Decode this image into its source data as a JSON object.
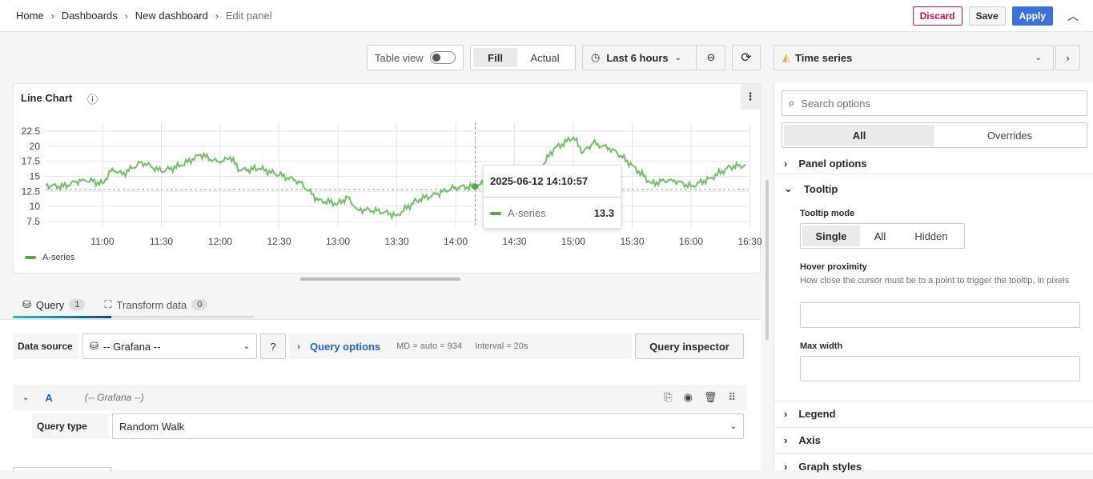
{
  "breadcrumb": [
    "Home",
    "Dashboards",
    "New dashboard",
    "Edit panel"
  ],
  "topbar": {
    "discard": "Discard",
    "save": "Save",
    "apply": "Apply"
  },
  "toolbar": {
    "table_view": "Table view",
    "table_view_on": false,
    "fill": "Fill",
    "actual": "Actual",
    "time_range": "Last 6 hours",
    "viz": "Time series"
  },
  "panel": {
    "title": "Line Chart",
    "tooltip": {
      "time": "2025-06-12 14:10:57",
      "series": "A-series",
      "value": "13.3"
    }
  },
  "chart_data": {
    "type": "line",
    "title": "Line Chart",
    "ylim": [
      5,
      25
    ],
    "yticks": [
      "22.5",
      "20",
      "17.5",
      "15",
      "12.5",
      "10",
      "7.5"
    ],
    "xticks": [
      "11:00",
      "11:30",
      "12:00",
      "12:30",
      "13:00",
      "13:30",
      "14:00",
      "14:30",
      "15:00",
      "15:30",
      "16:00",
      "16:30"
    ],
    "legend": "bottom-left",
    "grid": true,
    "series": [
      {
        "name": "A-series",
        "color": "#73bf69",
        "x": [
          "10:31",
          "10:40",
          "10:50",
          "11:00",
          "11:05",
          "11:10",
          "11:20",
          "11:30",
          "11:40",
          "11:50",
          "12:00",
          "12:05",
          "12:10",
          "12:20",
          "12:30",
          "12:40",
          "12:50",
          "13:00",
          "13:05",
          "13:10",
          "13:20",
          "13:30",
          "13:40",
          "13:50",
          "14:00",
          "14:10",
          "14:20",
          "14:30",
          "14:40",
          "14:50",
          "15:00",
          "15:05",
          "15:10",
          "15:20",
          "15:30",
          "15:40",
          "15:50",
          "16:00",
          "16:10",
          "16:20",
          "16:28"
        ],
        "y": [
          13.5,
          13.3,
          14.5,
          13.8,
          16.3,
          15.3,
          17.4,
          15.8,
          16.8,
          18.6,
          17.2,
          18.2,
          16.0,
          16.3,
          15.2,
          14.2,
          11.0,
          10.5,
          11.5,
          9.5,
          9.3,
          8.5,
          11.0,
          12.0,
          13.2,
          13.3,
          14.5,
          16.5,
          14.8,
          19.5,
          21.5,
          19.0,
          20.5,
          19.5,
          16.8,
          13.8,
          14.5,
          13.3,
          14.7,
          16.6,
          16.8
        ]
      }
    ]
  },
  "query": {
    "tabs": [
      {
        "label": "Query",
        "count": "1"
      },
      {
        "label": "Transform data",
        "count": "0"
      }
    ],
    "datasource_label": "Data source",
    "datasource": "-- Grafana --",
    "options_label": "Query options",
    "md": "MD = auto = 934",
    "interval": "Interval = 20s",
    "inspector": "Query inspector",
    "ref": "A",
    "ref_ds": "(-- Grafana --)",
    "type_label": "Query type",
    "type": "Random Walk"
  },
  "options": {
    "search_placeholder": "Search options",
    "tab_all": "All",
    "tab_overrides": "Overrides",
    "panel_options": "Panel options",
    "tooltip": "Tooltip",
    "tooltip_mode": "Tooltip mode",
    "modes": [
      "Single",
      "All",
      "Hidden"
    ],
    "hover": "Hover proximity",
    "hover_desc": "How close the cursor must be to a point to trigger the tooltip, in pixels",
    "max_width": "Max width",
    "legend": "Legend",
    "axis": "Axis",
    "graph_styles": "Graph styles"
  }
}
